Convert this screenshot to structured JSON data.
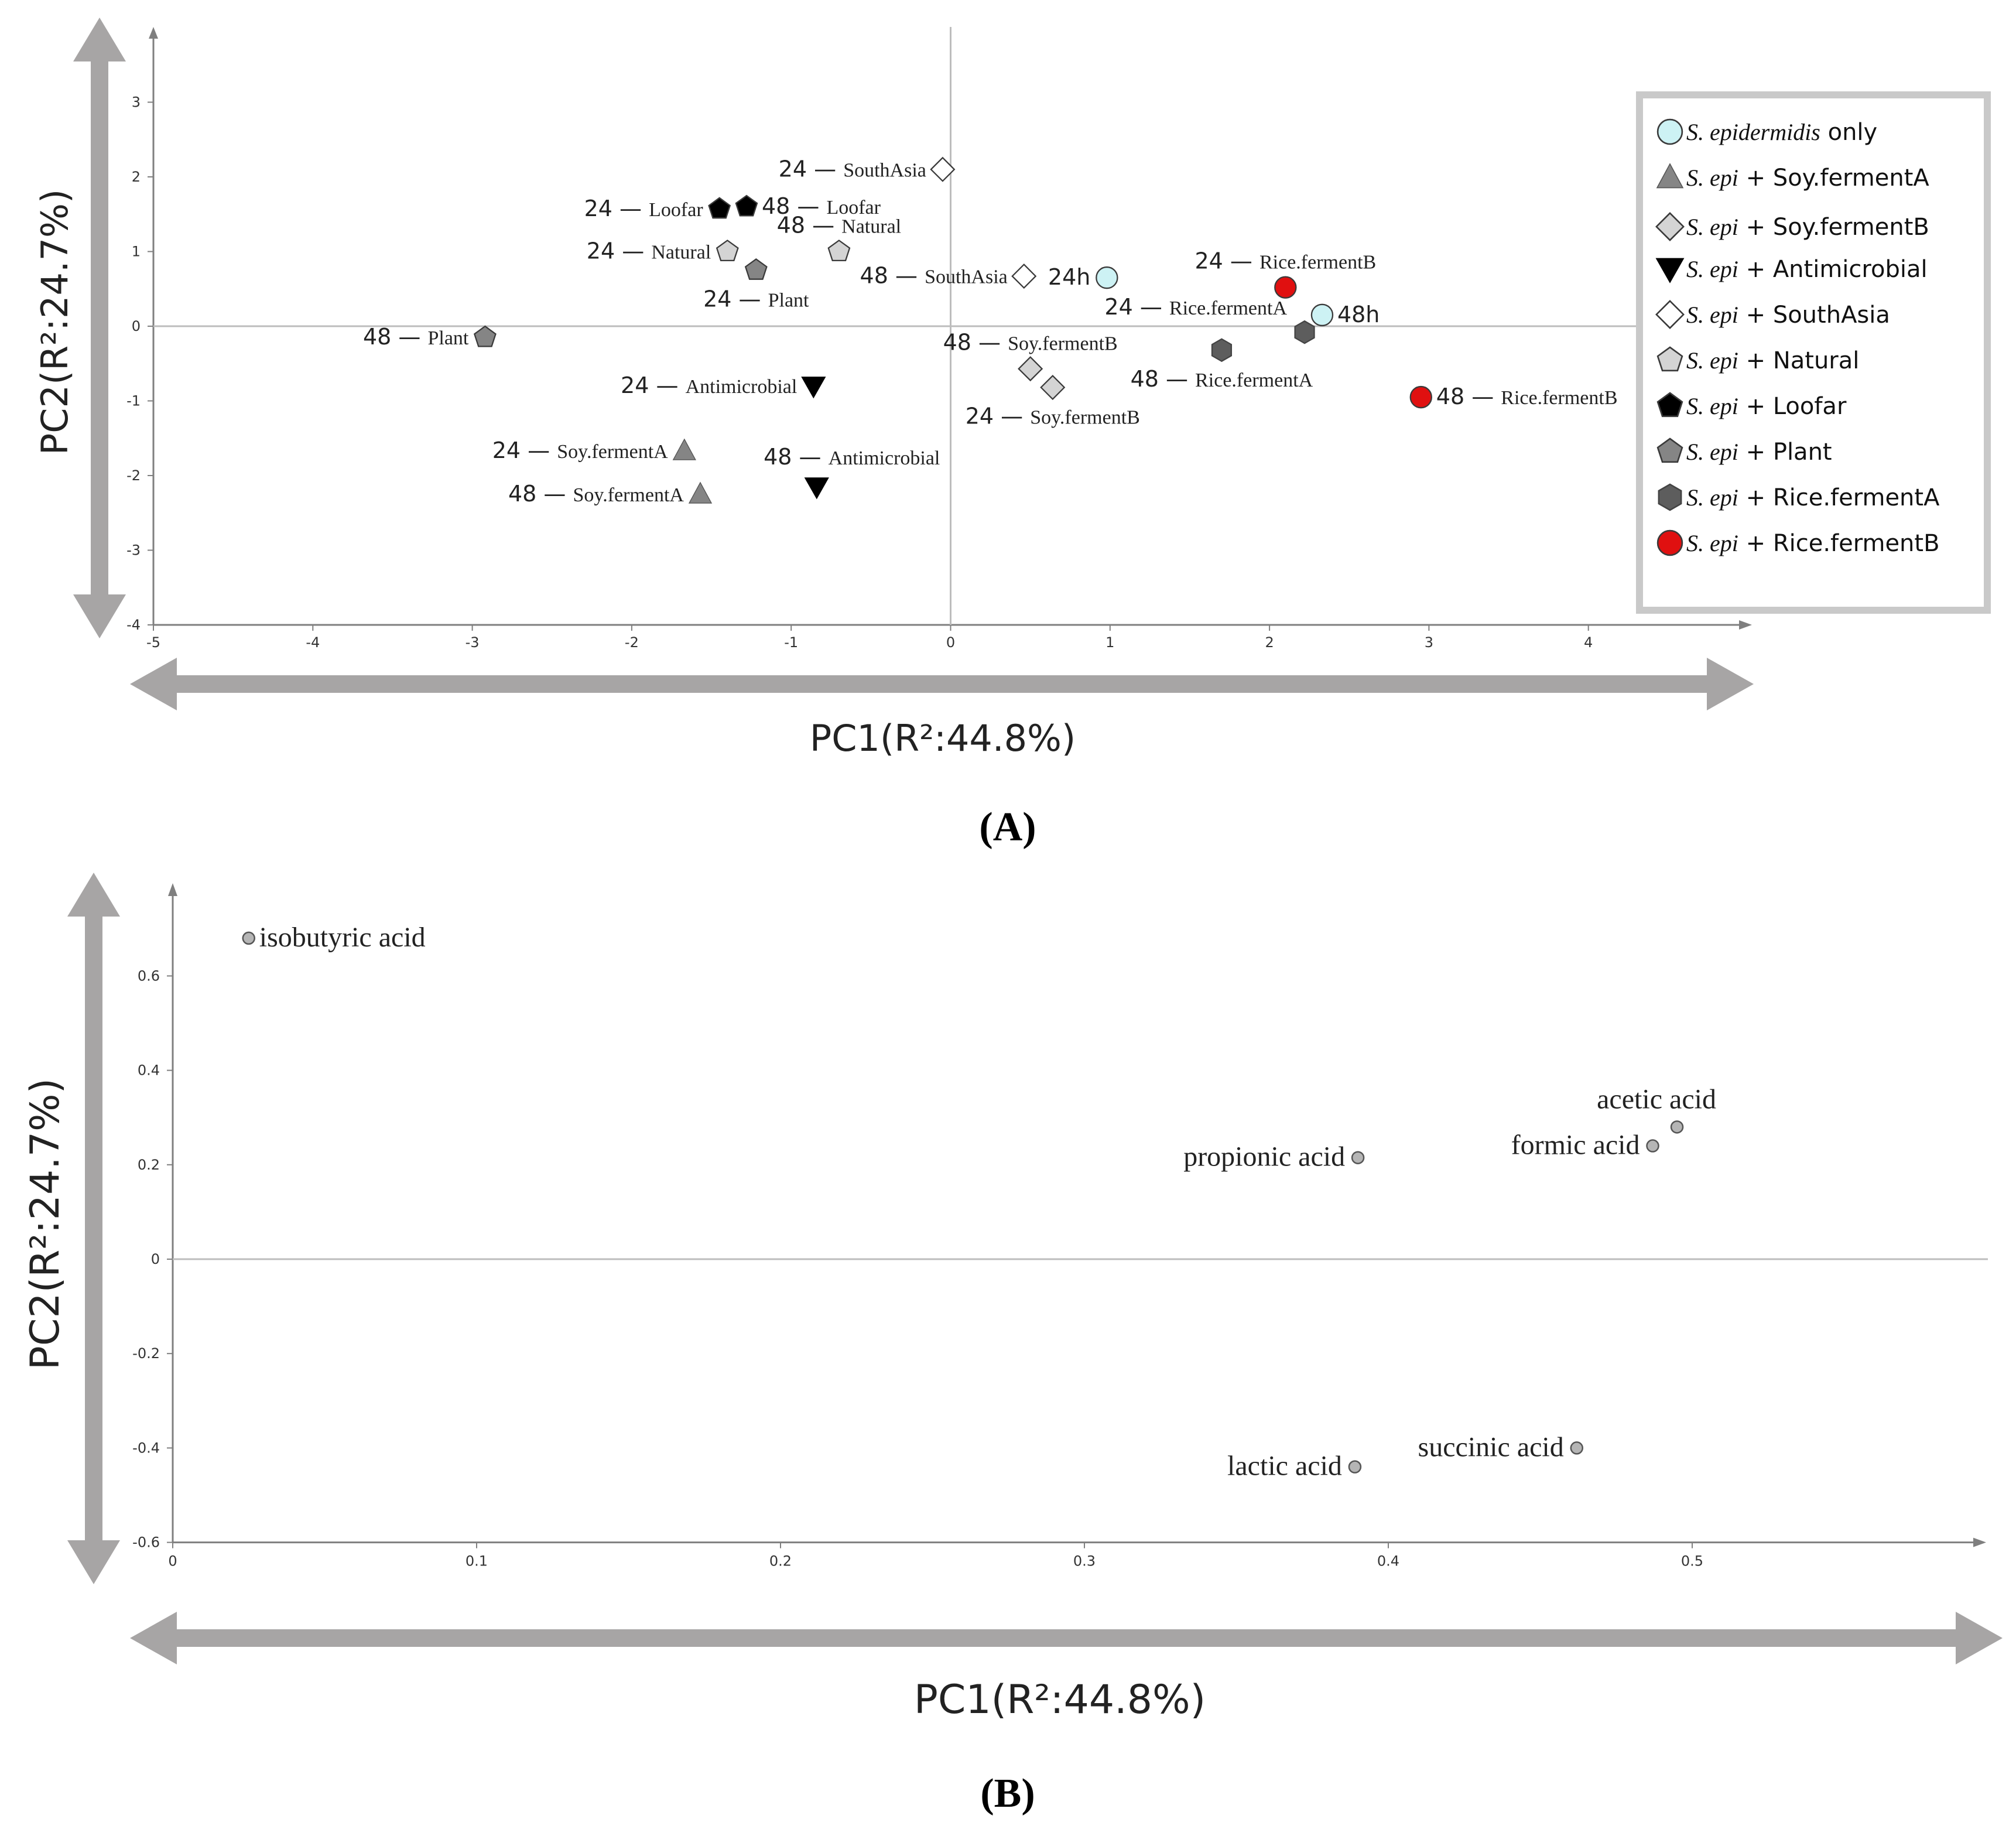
{
  "colors": {
    "arrow": "#a7a5a5",
    "axis": "#7f7f7f",
    "zero_line": "#bdbdbd",
    "tick_text": "#333333",
    "label_text": "#222222",
    "cyan": "#cdf2f4",
    "light_gray": "#d4d4d4",
    "mid_gray": "#858585",
    "dark_gray": "#5d5d5d",
    "black": "#000000",
    "red": "#e01010",
    "legend_border": "#c9c9c9",
    "variable_dot": "#b5b5b5"
  },
  "chart_data": [
    {
      "panel": "(A)",
      "type": "scatter",
      "title": "",
      "xlabel": "PC1(R²:44.8%)",
      "ylabel": "PC2(R²:24.7%)",
      "xlim": [
        -5,
        5
      ],
      "ylim": [
        -4,
        4
      ],
      "x_ticks": [
        -5,
        -4,
        -3,
        -2,
        -1,
        0,
        1,
        2,
        3,
        4
      ],
      "y_ticks": [
        -4,
        -3,
        -2,
        -1,
        0,
        1,
        2,
        3
      ],
      "x_tick_labels": [
        "-5",
        "-4",
        "-3",
        "-2",
        "-1",
        "0",
        "1",
        "2",
        "3",
        "4"
      ],
      "y_tick_labels": [
        "-4",
        "-3",
        "-2",
        "-1",
        "0",
        "1",
        "2",
        "3"
      ],
      "legend": [
        {
          "italic": "S. epidermidis",
          "text": " only",
          "marker": "circle",
          "color": "cyan"
        },
        {
          "italic": "S. epi",
          "text": " + Soy.fermentA",
          "marker": "triangle",
          "color": "mid_gray"
        },
        {
          "italic": "S. epi",
          "text": " + Soy.fermentB",
          "marker": "diamond",
          "color": "light_gray"
        },
        {
          "italic": "S. epi",
          "text": " + Antimicrobial",
          "marker": "triangle-down",
          "color": "black"
        },
        {
          "italic": "S. epi",
          "text": " + SouthAsia",
          "marker": "diamond",
          "color": "white"
        },
        {
          "italic": "S. epi",
          "text": " + Natural",
          "marker": "pentagon",
          "color": "light_gray"
        },
        {
          "italic": "S. epi",
          "text": " + Loofar",
          "marker": "pentagon",
          "color": "black"
        },
        {
          "italic": "S. epi",
          "text": " + Plant",
          "marker": "pentagon",
          "color": "mid_gray"
        },
        {
          "italic": "S. epi",
          "text": " + Rice.fermentA",
          "marker": "hexagon",
          "color": "dark_gray"
        },
        {
          "italic": "S. epi",
          "text": " + Rice.fermentB",
          "marker": "circle",
          "color": "red"
        }
      ],
      "points": [
        {
          "x": -0.05,
          "y": 2.1,
          "marker": "diamond",
          "color": "white",
          "hour": "24",
          "label": "SouthAsia",
          "side": "left"
        },
        {
          "x": -1.45,
          "y": 1.57,
          "marker": "pentagon",
          "color": "black",
          "hour": "24",
          "label": "Loofar",
          "side": "left"
        },
        {
          "x": -1.28,
          "y": 1.6,
          "marker": "pentagon",
          "color": "black",
          "hour": "48",
          "label": "Loofar",
          "side": "right"
        },
        {
          "x": -0.7,
          "y": 1.0,
          "marker": "pentagon",
          "color": "light_gray",
          "hour": "48",
          "label": "Natural",
          "side": "above"
        },
        {
          "x": -1.4,
          "y": 1.0,
          "marker": "pentagon",
          "color": "light_gray",
          "hour": "24",
          "label": "Natural",
          "side": "left"
        },
        {
          "x": -1.22,
          "y": 0.75,
          "marker": "pentagon",
          "color": "mid_gray",
          "hour": "24",
          "label": "Plant",
          "side": "below"
        },
        {
          "x": 0.46,
          "y": 0.67,
          "marker": "diamond",
          "color": "white",
          "hour": "48",
          "label": "SouthAsia",
          "side": "left"
        },
        {
          "x": 0.98,
          "y": 0.65,
          "marker": "circle",
          "color": "cyan",
          "hour": "",
          "label": "24h",
          "side": "left"
        },
        {
          "x": 2.1,
          "y": 0.52,
          "marker": "circle",
          "color": "red",
          "hour": "24",
          "label": "Rice.fermentB",
          "side": "above"
        },
        {
          "x": 2.33,
          "y": 0.15,
          "marker": "circle",
          "color": "cyan",
          "hour": "",
          "label": "48h",
          "side": "right"
        },
        {
          "x": 2.22,
          "y": -0.08,
          "marker": "hexagon",
          "color": "dark_gray",
          "hour": "24",
          "label": "Rice.fermentA",
          "side": "aboveleft"
        },
        {
          "x": 1.7,
          "y": -0.32,
          "marker": "hexagon",
          "color": "dark_gray",
          "hour": "48",
          "label": "Rice.fermentA",
          "side": "below"
        },
        {
          "x": -2.92,
          "y": -0.15,
          "marker": "pentagon",
          "color": "mid_gray",
          "hour": "48",
          "label": "Plant",
          "side": "left"
        },
        {
          "x": 0.5,
          "y": -0.57,
          "marker": "diamond",
          "color": "light_gray",
          "hour": "48",
          "label": "Soy.fermentB",
          "side": "above"
        },
        {
          "x": 0.64,
          "y": -0.82,
          "marker": "diamond",
          "color": "light_gray",
          "hour": "24",
          "label": "Soy.fermentB",
          "side": "below"
        },
        {
          "x": 2.95,
          "y": -0.95,
          "marker": "circle",
          "color": "red",
          "hour": "48",
          "label": "Rice.fermentB",
          "side": "right"
        },
        {
          "x": -0.86,
          "y": -0.8,
          "marker": "triangle-down",
          "color": "black",
          "hour": "24",
          "label": "Antimicrobial",
          "side": "left"
        },
        {
          "x": -1.67,
          "y": -1.67,
          "marker": "triangle",
          "color": "mid_gray",
          "hour": "24",
          "label": "Soy.fermentA",
          "side": "left"
        },
        {
          "x": -0.84,
          "y": -2.15,
          "marker": "triangle-down",
          "color": "black",
          "hour": "48",
          "label": "Antimicrobial",
          "side": "aboveright"
        },
        {
          "x": -1.57,
          "y": -2.25,
          "marker": "triangle",
          "color": "mid_gray",
          "hour": "48",
          "label": "Soy.fermentA",
          "side": "left"
        }
      ]
    },
    {
      "panel": "(B)",
      "type": "scatter",
      "title": "",
      "xlabel": "PC1(R²:44.8%)",
      "ylabel": "PC2(R²:24.7%)",
      "xlim": [
        0,
        0.6
      ],
      "ylim": [
        -0.6,
        0.75
      ],
      "x_ticks": [
        0,
        0.1,
        0.2,
        0.3,
        0.4,
        0.5
      ],
      "y_ticks": [
        -0.6,
        -0.4,
        -0.2,
        0,
        0.2,
        0.4,
        0.6
      ],
      "x_tick_labels": [
        "0",
        "0.1",
        "0.2",
        "0.3",
        "0.4",
        "0.5"
      ],
      "y_tick_labels": [
        "-0.6",
        "-0.4",
        "-0.2",
        "0",
        "0.2",
        "0.4",
        "0.6"
      ],
      "points": [
        {
          "x": 0.025,
          "y": 0.68,
          "label": "isobutyric acid",
          "side": "right"
        },
        {
          "x": 0.39,
          "y": 0.215,
          "label": "propionic acid",
          "side": "left"
        },
        {
          "x": 0.495,
          "y": 0.28,
          "label": "acetic acid",
          "side": "above"
        },
        {
          "x": 0.487,
          "y": 0.24,
          "label": "formic acid",
          "side": "left"
        },
        {
          "x": 0.462,
          "y": -0.4,
          "label": "succinic acid",
          "side": "left"
        },
        {
          "x": 0.389,
          "y": -0.44,
          "label": "lactic acid",
          "side": "left"
        }
      ]
    }
  ]
}
